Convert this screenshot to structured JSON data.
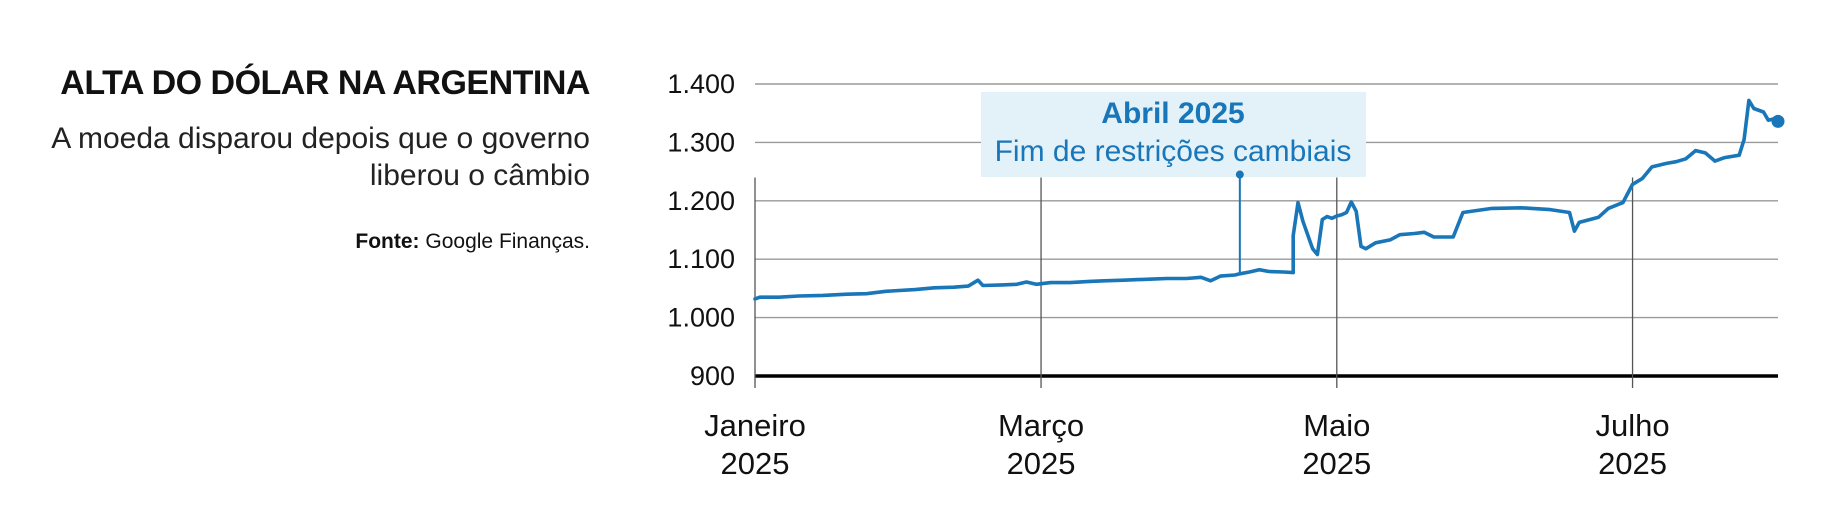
{
  "header": {
    "title": "ALTA DO DÓLAR NA ARGENTINA",
    "subtitle": "A moeda disparou depois que o governo liberou o câmbio",
    "source_label": "Fonte:",
    "source_text": "Google Finanças."
  },
  "colors": {
    "series": "#1976b8",
    "annotation_bg": "#e3f1f9",
    "grid": "#9a9a9a",
    "baseline": "#000000"
  },
  "chart_data": {
    "type": "line",
    "title": "ALTA DO DÓLAR NA ARGENTINA",
    "xlabel": "",
    "ylabel": "",
    "ylim": [
      900,
      1400
    ],
    "xlim": [
      "2025-01-01",
      "2025-07-31"
    ],
    "grid": true,
    "legend": "none",
    "y_ticks": [
      {
        "value": 900,
        "label": "900"
      },
      {
        "value": 1000,
        "label": "1.000"
      },
      {
        "value": 1100,
        "label": "1.100"
      },
      {
        "value": 1200,
        "label": "1.200"
      },
      {
        "value": 1300,
        "label": "1.300"
      },
      {
        "value": 1400,
        "label": "1.400"
      }
    ],
    "x_ticks": [
      {
        "date": "2025-01-01",
        "label_line1": "Janeiro",
        "label_line2": "2025"
      },
      {
        "date": "2025-03-01",
        "label_line1": "Março",
        "label_line2": "2025"
      },
      {
        "date": "2025-05-01",
        "label_line1": "Maio",
        "label_line2": "2025"
      },
      {
        "date": "2025-07-01",
        "label_line1": "Julho",
        "label_line2": "2025"
      }
    ],
    "annotation": {
      "date": "2025-04-11",
      "value": 1245,
      "title": "Abril 2025",
      "text": "Fim de restrições cambiais"
    },
    "series": [
      {
        "points": [
          [
            "2025-01-01",
            1032
          ],
          [
            "2025-01-02",
            1035
          ],
          [
            "2025-01-06",
            1035
          ],
          [
            "2025-01-10",
            1037
          ],
          [
            "2025-01-15",
            1038
          ],
          [
            "2025-01-20",
            1040
          ],
          [
            "2025-01-24",
            1041
          ],
          [
            "2025-01-28",
            1045
          ],
          [
            "2025-02-03",
            1048
          ],
          [
            "2025-02-07",
            1051
          ],
          [
            "2025-02-11",
            1052
          ],
          [
            "2025-02-14",
            1054
          ],
          [
            "2025-02-16",
            1064
          ],
          [
            "2025-02-17",
            1055
          ],
          [
            "2025-02-21",
            1056
          ],
          [
            "2025-02-24",
            1057
          ],
          [
            "2025-02-26",
            1061
          ],
          [
            "2025-02-28",
            1057
          ],
          [
            "2025-03-03",
            1060
          ],
          [
            "2025-03-07",
            1060
          ],
          [
            "2025-03-11",
            1062
          ],
          [
            "2025-03-14",
            1063
          ],
          [
            "2025-03-18",
            1064
          ],
          [
            "2025-03-21",
            1065
          ],
          [
            "2025-03-24",
            1066
          ],
          [
            "2025-03-27",
            1067
          ],
          [
            "2025-03-31",
            1067
          ],
          [
            "2025-04-03",
            1069
          ],
          [
            "2025-04-05",
            1063
          ],
          [
            "2025-04-07",
            1071
          ],
          [
            "2025-04-10",
            1073
          ],
          [
            "2025-04-11",
            1075
          ],
          [
            "2025-04-13",
            1078
          ],
          [
            "2025-04-15",
            1082
          ],
          [
            "2025-04-17",
            1079
          ],
          [
            "2025-04-20",
            1078
          ],
          [
            "2025-04-22",
            1077
          ],
          [
            "2025-04-22",
            1140
          ],
          [
            "2025-04-23",
            1197
          ],
          [
            "2025-04-24",
            1165
          ],
          [
            "2025-04-26",
            1118
          ],
          [
            "2025-04-27",
            1108
          ],
          [
            "2025-04-28",
            1168
          ],
          [
            "2025-04-29",
            1173
          ],
          [
            "2025-04-30",
            1170
          ],
          [
            "2025-05-01",
            1174
          ],
          [
            "2025-05-02",
            1176
          ],
          [
            "2025-05-03",
            1180
          ],
          [
            "2025-05-04",
            1198
          ],
          [
            "2025-05-05",
            1182
          ],
          [
            "2025-05-06",
            1122
          ],
          [
            "2025-05-07",
            1118
          ],
          [
            "2025-05-09",
            1128
          ],
          [
            "2025-05-12",
            1133
          ],
          [
            "2025-05-14",
            1142
          ],
          [
            "2025-05-17",
            1144
          ],
          [
            "2025-05-19",
            1146
          ],
          [
            "2025-05-21",
            1138
          ],
          [
            "2025-05-25",
            1138
          ],
          [
            "2025-05-27",
            1180
          ],
          [
            "2025-06-02",
            1187
          ],
          [
            "2025-06-08",
            1188
          ],
          [
            "2025-06-14",
            1185
          ],
          [
            "2025-06-18",
            1180
          ],
          [
            "2025-06-19",
            1148
          ],
          [
            "2025-06-20",
            1163
          ],
          [
            "2025-06-24",
            1172
          ],
          [
            "2025-06-26",
            1187
          ],
          [
            "2025-06-29",
            1197
          ],
          [
            "2025-07-01",
            1228
          ],
          [
            "2025-07-03",
            1238
          ],
          [
            "2025-07-05",
            1258
          ],
          [
            "2025-07-08",
            1264
          ],
          [
            "2025-07-10",
            1267
          ],
          [
            "2025-07-12",
            1272
          ],
          [
            "2025-07-14",
            1286
          ],
          [
            "2025-07-16",
            1282
          ],
          [
            "2025-07-18",
            1268
          ],
          [
            "2025-07-20",
            1274
          ],
          [
            "2025-07-23",
            1278
          ],
          [
            "2025-07-24",
            1305
          ],
          [
            "2025-07-25",
            1372
          ],
          [
            "2025-07-26",
            1358
          ],
          [
            "2025-07-28",
            1352
          ],
          [
            "2025-07-29",
            1338
          ],
          [
            "2025-07-30",
            1340
          ],
          [
            "2025-07-31",
            1336
          ]
        ]
      }
    ]
  }
}
